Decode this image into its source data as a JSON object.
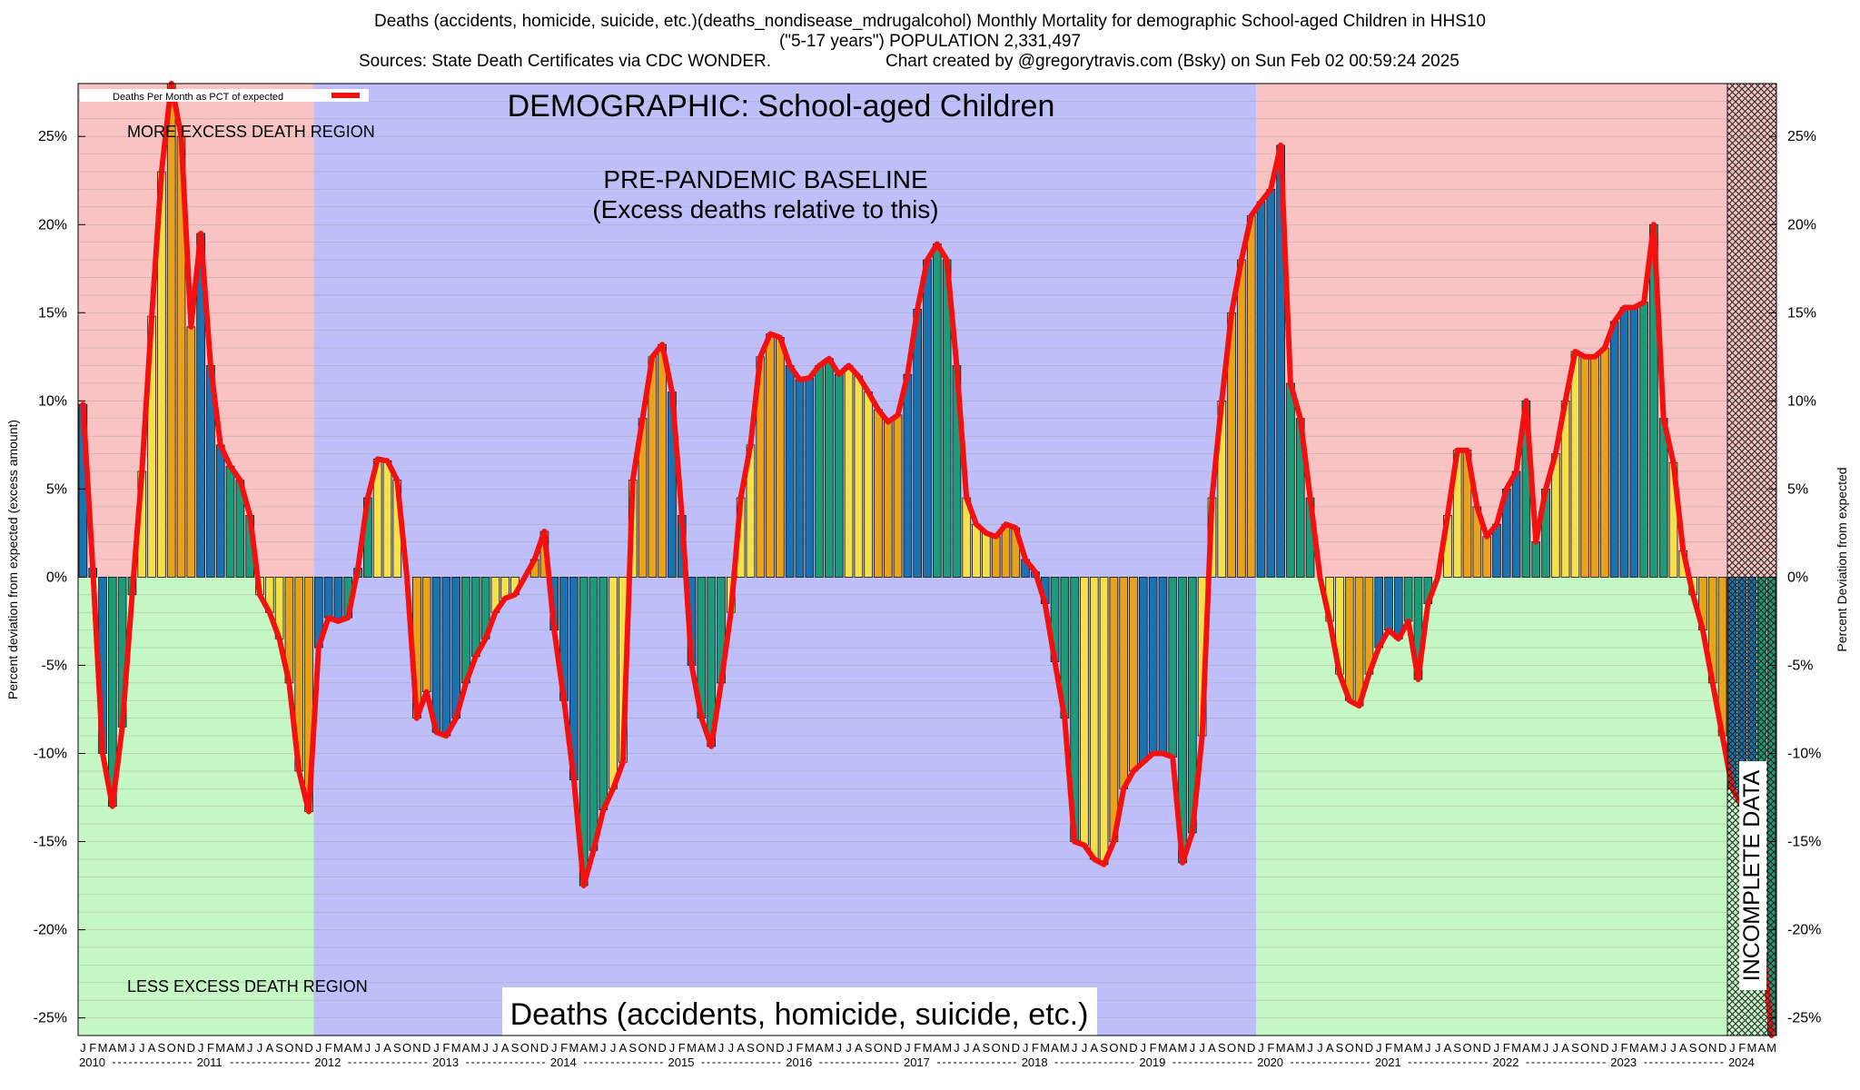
{
  "header": {
    "line1": "Deaths (accidents, homicide, suicide, etc.)(deaths_nondisease_mdrugalcohol) Monthly Mortality for demographic School-aged Children in HHS10",
    "line2": "(\"5-17 years\") POPULATION 2,331,497",
    "line3_left": "Sources: State Death Certificates via CDC WONDER.",
    "line3_right": "Chart created by @gregorytravis.com (Bsky) on Sun Feb 02 00:59:24 2025"
  },
  "colors": {
    "more_region": "#f9c3c3",
    "less_region": "#c4f7c4",
    "baseline_region": "#bebef9",
    "line": "#f51010",
    "bar_palette": [
      "#1a73b0",
      "#1d9b78",
      "#f4e04a",
      "#e8a21c"
    ]
  },
  "chart_data": {
    "type": "bar",
    "title": "DEMOGRAPHIC: School-aged Children",
    "subtitle": "Deaths (accidents, homicide, suicide, etc.)",
    "ylabel_left": "Percent deviation from expected (excess amount)",
    "ylabel_right": "Percent Deviation from expected",
    "legend": {
      "label": "Deaths Per Month as PCT of expected",
      "position": "top-left"
    },
    "ylim": [
      -26,
      28
    ],
    "yticks": [
      -25,
      -20,
      -15,
      -10,
      -5,
      0,
      5,
      10,
      15,
      20,
      25
    ],
    "ytick_labels": [
      "-25%",
      "-20%",
      "-15%",
      "-10%",
      "-5%",
      "0%",
      "5%",
      "10%",
      "15%",
      "20%",
      "25%"
    ],
    "grid": "horizontal",
    "x_start": "2010-01",
    "month_letters": [
      "J",
      "F",
      "M",
      "A",
      "M",
      "J",
      "J",
      "A",
      "S",
      "O",
      "N",
      "D"
    ],
    "years": [
      "2010",
      "2011",
      "2012",
      "2013",
      "2014",
      "2015",
      "2016",
      "2017",
      "2018",
      "2019",
      "2020",
      "2021",
      "2022",
      "2023",
      "2024"
    ],
    "values": [
      9.8,
      0.5,
      -10.0,
      -13.0,
      -8.5,
      -1.0,
      6.0,
      14.8,
      23.0,
      28.0,
      25.0,
      14.2,
      19.5,
      12.0,
      7.5,
      6.3,
      5.5,
      3.5,
      -1.0,
      -2.0,
      -3.5,
      -6.0,
      -11.0,
      -13.3,
      -4.0,
      -2.3,
      -2.5,
      -2.3,
      0.5,
      4.5,
      6.7,
      6.6,
      5.5,
      0.0,
      -8.0,
      -6.5,
      -8.8,
      -9.0,
      -8.0,
      -6.0,
      -4.5,
      -3.5,
      -2.0,
      -1.2,
      -1.0,
      0.0,
      1.0,
      2.6,
      -3.0,
      -7.0,
      -11.5,
      -17.5,
      -15.5,
      -13.2,
      -12.0,
      -10.5,
      5.5,
      9.0,
      12.5,
      13.2,
      10.5,
      3.5,
      -5.0,
      -8.0,
      -9.6,
      -6.0,
      -2.0,
      4.5,
      7.5,
      12.5,
      13.8,
      13.6,
      12.0,
      11.2,
      11.3,
      12.0,
      12.4,
      11.5,
      12.0,
      11.4,
      10.5,
      9.5,
      8.8,
      9.2,
      11.5,
      15.2,
      18.0,
      18.9,
      18.0,
      12.0,
      4.5,
      3.0,
      2.5,
      2.3,
      3.0,
      2.8,
      1.0,
      0.3,
      -1.5,
      -4.8,
      -8.0,
      -15.0,
      -15.2,
      -16.0,
      -16.3,
      -15.0,
      -12.0,
      -11.0,
      -10.5,
      -10.0,
      -10.0,
      -10.2,
      -16.2,
      -14.5,
      -9.0,
      4.5,
      10.0,
      15.0,
      18.0,
      20.5,
      21.3,
      22.0,
      24.5,
      11.0,
      9.0,
      4.5,
      0.0,
      -2.5,
      -5.5,
      -7.0,
      -7.3,
      -5.5,
      -4.0,
      -3.0,
      -3.5,
      -2.5,
      -5.8,
      -1.5,
      0.0,
      3.5,
      7.2,
      7.2,
      4.0,
      2.3,
      3.0,
      5.0,
      6.0,
      10.0,
      2.0,
      5.0,
      7.0,
      10.0,
      12.8,
      12.5,
      12.5,
      13.0,
      14.5,
      15.3,
      15.3,
      15.6,
      20.0,
      9.0,
      6.5,
      1.5,
      -1.0,
      -3.0,
      -6.0,
      -9.0,
      -12.0,
      -13.0,
      -14.0,
      -20.0,
      -26.0
    ],
    "annotations": {
      "more": "MORE EXCESS DEATH REGION",
      "less": "LESS EXCESS DEATH REGION",
      "baseline_title": "PRE-PANDEMIC BASELINE",
      "baseline_sub": "(Excess deaths relative to this)",
      "incomplete": "INCOMPLETE DATA"
    },
    "baseline_period": [
      "2012-01",
      "2019-12"
    ],
    "incomplete_period": [
      "2024-01",
      "2024-10"
    ]
  }
}
